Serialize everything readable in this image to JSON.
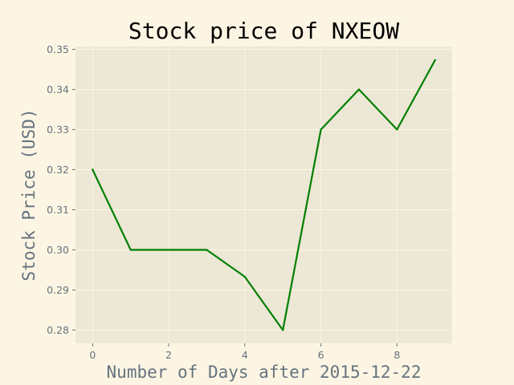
{
  "chart_data": {
    "type": "line",
    "title": "Stock price of NXEOW",
    "xlabel": "Number of Days after 2015-12-22",
    "ylabel": "Stock Price (USD)",
    "x": [
      0,
      1,
      2,
      3,
      4,
      5,
      6,
      7,
      8,
      9
    ],
    "series": [
      {
        "values": [
          0.32,
          0.3,
          0.3,
          0.3,
          0.2933,
          0.28,
          0.33,
          0.34,
          0.33,
          0.3473
        ],
        "color": "#008000"
      }
    ],
    "xlim": [
      -0.45,
      9.45
    ],
    "ylim": [
      0.2767,
      0.3507
    ],
    "xticks": [
      0,
      2,
      4,
      6,
      8
    ],
    "xtick_labels": [
      "0",
      "2",
      "4",
      "6",
      "8"
    ],
    "yticks": [
      0.28,
      0.29,
      0.3,
      0.31,
      0.32,
      0.33,
      0.34,
      0.35
    ],
    "ytick_labels": [
      "0.28",
      "0.29",
      "0.30",
      "0.31",
      "0.32",
      "0.33",
      "0.34",
      "0.35"
    ],
    "grid": true,
    "colors": {
      "figure_background": "#fcf5e3",
      "plot_background": "#ede7d6",
      "grid": "#fcf5e3",
      "text": "#65737e"
    }
  }
}
